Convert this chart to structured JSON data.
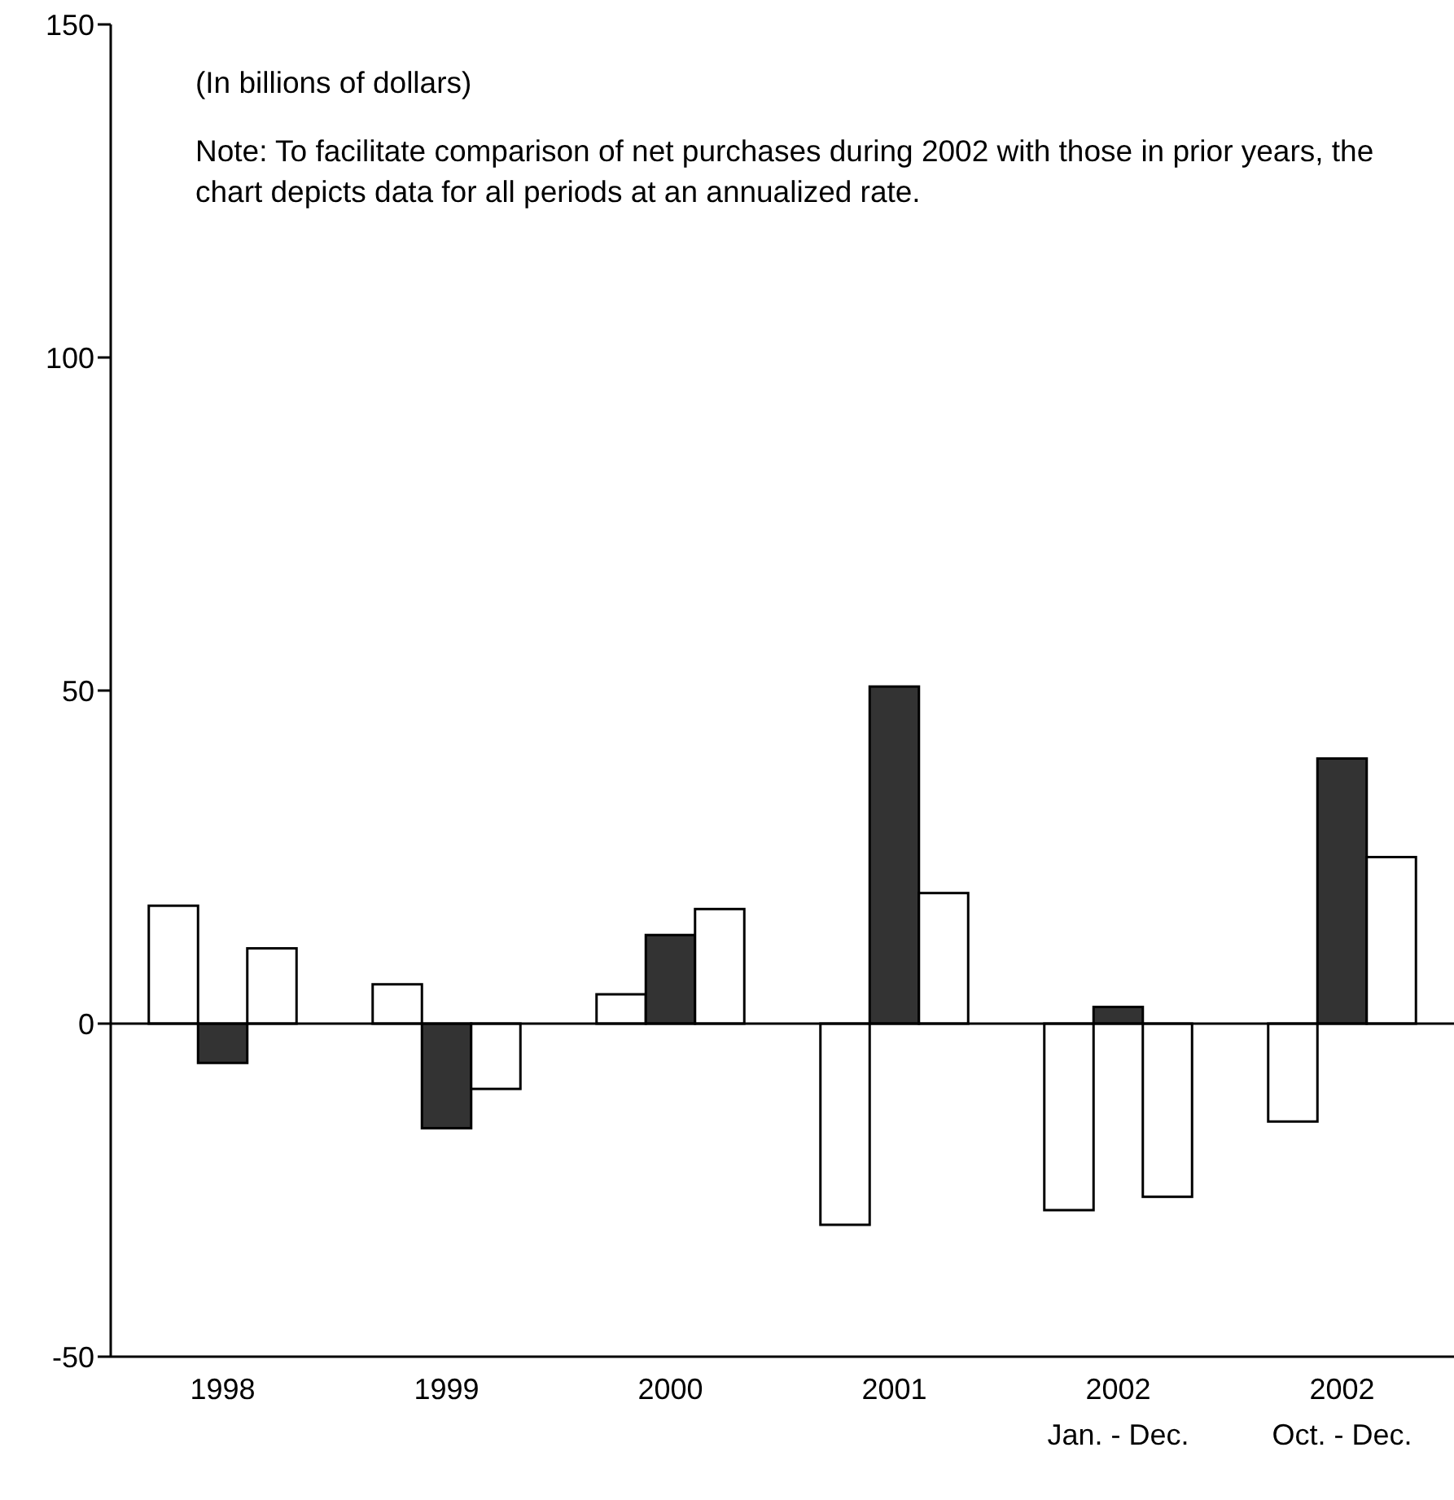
{
  "chart_data": {
    "type": "bar",
    "categories": [
      "1998",
      "1999",
      "2000",
      "2001",
      "2002\nJan. - Dec.",
      "2002\nOct. - Dec."
    ],
    "series": [
      {
        "color": "#ffffff",
        "values": [
          17.7,
          5.9,
          4.4,
          -30.2,
          -28.0,
          -14.7
        ]
      },
      {
        "color": "#333333",
        "values": [
          -5.9,
          -15.7,
          13.3,
          50.6,
          2.5,
          39.8
        ]
      },
      {
        "color": "#ffffff",
        "values": [
          11.3,
          -9.8,
          17.2,
          19.6,
          -26.0,
          25.0
        ]
      }
    ],
    "ylim": [
      -50,
      150
    ],
    "yticks": [
      -50,
      0,
      50,
      100,
      150
    ],
    "annotations": [
      "(In billions of dollars)",
      "Note: To facilitate comparison of net purchases during 2002 with those in prior years, the chart depicts data for all periods at an annualized rate."
    ]
  }
}
